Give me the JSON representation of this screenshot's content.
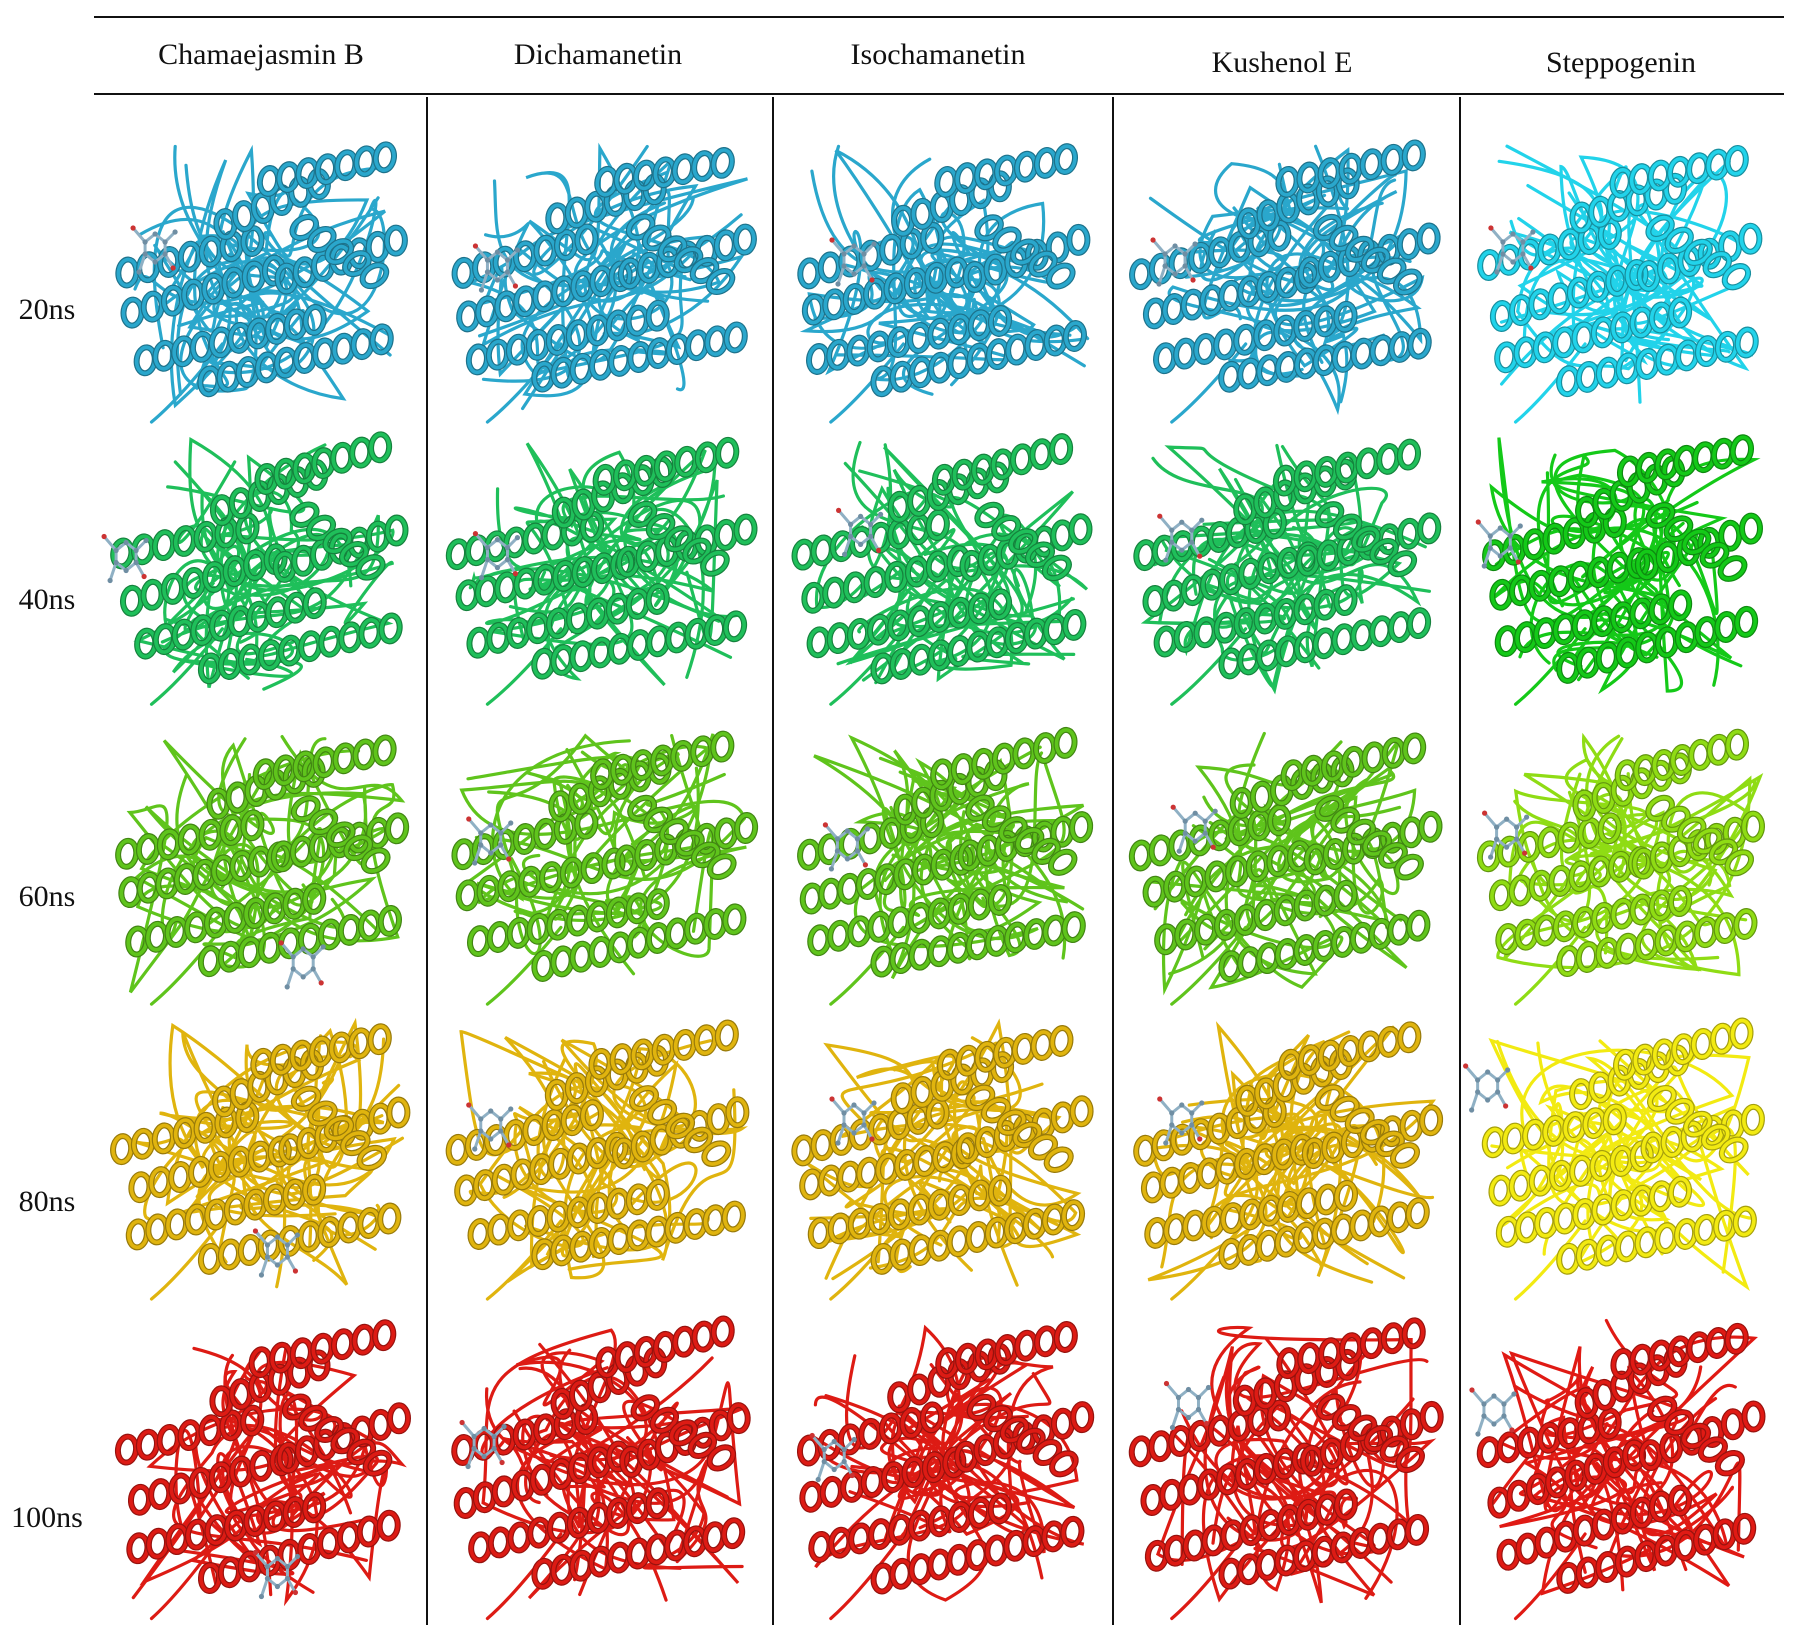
{
  "columns": [
    "Chamaejasmin B",
    "Dichamanetin",
    "Isochamanetin",
    "Kushenol E",
    "Steppogenin"
  ],
  "rows": [
    {
      "label": "20ns",
      "color": "#2aa7cc",
      "alt_color": "#22d3ea"
    },
    {
      "label": "40ns",
      "color": "#1fbf5a",
      "alt_color": "#14c918"
    },
    {
      "label": "60ns",
      "color": "#5fc41c",
      "alt_color": "#8fdc14"
    },
    {
      "label": "80ns",
      "color": "#e0b40e",
      "alt_color": "#f2ea12"
    },
    {
      "label": "100ns",
      "color": "#dd1b14",
      "alt_color": "#e01a14"
    }
  ],
  "ligand_color": "#8fb0c4",
  "ligand_oxygen_color": "#cc3333"
}
